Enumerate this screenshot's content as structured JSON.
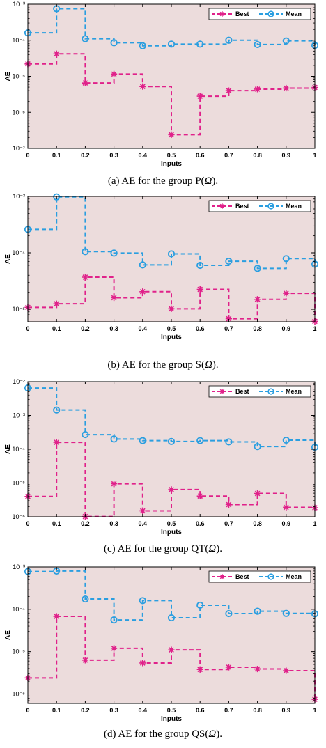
{
  "colors": {
    "background": "#ecdcdc",
    "best": "#e0218a",
    "mean": "#2a9ee0",
    "axis": "#000000"
  },
  "panels": [
    {
      "caption_prefix": "(a)  AE for the group P(",
      "caption_symbol": "Ω",
      "caption_suffix": ")."
    },
    {
      "caption_prefix": "(b) AE for the group S(",
      "caption_symbol": "Ω",
      "caption_suffix": ")."
    },
    {
      "caption_prefix": "(c) AE for the group QT(",
      "caption_symbol": "Ω",
      "caption_suffix": ")."
    },
    {
      "caption_prefix": "(d) AE for the group QS(",
      "caption_symbol": "Ω",
      "caption_suffix": ")."
    }
  ],
  "chart_data": [
    {
      "type": "line",
      "step": true,
      "yscale": "log",
      "xlabel": "Inputs",
      "ylabel": "AE",
      "xlim": [
        0,
        1
      ],
      "ylim": [
        1e-07,
        0.001
      ],
      "xticks": [
        "0",
        "0.1",
        "0.2",
        "0.3",
        "0.4",
        "0.5",
        "0.6",
        "0.7",
        "0.8",
        "0.9",
        "1"
      ],
      "yticks": [
        {
          "value": 1e-07,
          "label": "10⁻⁷"
        },
        {
          "value": 1e-06,
          "label": "10⁻⁶"
        },
        {
          "value": 1e-05,
          "label": "10⁻⁵"
        },
        {
          "value": 0.0001,
          "label": "10⁻⁴"
        },
        {
          "value": 0.001,
          "label": "10⁻³"
        }
      ],
      "legend": "top-right",
      "grid": false,
      "x": [
        0,
        0.1,
        0.2,
        0.3,
        0.4,
        0.5,
        0.6,
        0.7,
        0.8,
        0.9,
        1
      ],
      "series": [
        {
          "name": "Best",
          "marker": "asterisk",
          "values": [
            2.2e-05,
            4.2e-05,
            6.5e-06,
            1.15e-05,
            5.2e-06,
            2.4e-07,
            2.8e-06,
            4e-06,
            4.4e-06,
            4.7e-06,
            4.9e-06
          ]
        },
        {
          "name": "Mean",
          "marker": "circle",
          "values": [
            0.00016,
            0.00075,
            0.00011,
            8.5e-05,
            7e-05,
            7.8e-05,
            7.8e-05,
            0.0001,
            7.6e-05,
            9.6e-05,
            7.2e-05
          ]
        }
      ]
    },
    {
      "type": "line",
      "step": true,
      "yscale": "log",
      "xlabel": "Inputs",
      "ylabel": "AE",
      "xlim": [
        0,
        1
      ],
      "ylim": [
        6e-06,
        0.001
      ],
      "xticks": [
        "0",
        "0.1",
        "0.2",
        "0.3",
        "0.4",
        "0.5",
        "0.6",
        "0.7",
        "0.8",
        "0.9",
        "1"
      ],
      "yticks": [
        {
          "value": 1e-05,
          "label": "10⁻⁵"
        },
        {
          "value": 0.0001,
          "label": "10⁻⁴"
        },
        {
          "value": 0.001,
          "label": "10⁻³"
        }
      ],
      "legend": "top-right",
      "grid": false,
      "x": [
        0,
        0.1,
        0.2,
        0.3,
        0.4,
        0.5,
        0.6,
        0.7,
        0.8,
        0.9,
        1
      ],
      "series": [
        {
          "name": "Best",
          "marker": "asterisk",
          "values": [
            1.08e-05,
            1.25e-05,
            3.7e-05,
            1.6e-05,
            2.05e-05,
            1.02e-05,
            2.25e-05,
            6.8e-06,
            1.5e-05,
            1.92e-05,
            6.1e-06
          ]
        },
        {
          "name": "Mean",
          "marker": "circle",
          "values": [
            0.00026,
            0.00098,
            0.000105,
            9.9e-05,
            6.1e-05,
            9.6e-05,
            6e-05,
            7.1e-05,
            5.3e-05,
            7.9e-05,
            6.3e-05
          ]
        }
      ]
    },
    {
      "type": "line",
      "step": true,
      "yscale": "log",
      "xlabel": "Inputs",
      "ylabel": "AE",
      "xlim": [
        0,
        1
      ],
      "ylim": [
        1e-06,
        0.01
      ],
      "xticks": [
        "0",
        "0.1",
        "0.2",
        "0.3",
        "0.4",
        "0.5",
        "0.6",
        "0.7",
        "0.8",
        "0.9",
        "1"
      ],
      "yticks": [
        {
          "value": 1e-06,
          "label": "10⁻⁶"
        },
        {
          "value": 1e-05,
          "label": "10⁻⁵"
        },
        {
          "value": 0.0001,
          "label": "10⁻⁴"
        },
        {
          "value": 0.001,
          "label": "10⁻³"
        },
        {
          "value": 0.01,
          "label": "10⁻²"
        }
      ],
      "legend": "top-right",
      "grid": false,
      "x": [
        0,
        0.1,
        0.2,
        0.3,
        0.4,
        0.5,
        0.6,
        0.7,
        0.8,
        0.9,
        1
      ],
      "series": [
        {
          "name": "Best",
          "marker": "asterisk",
          "values": [
            4e-06,
            0.00016,
            1.02e-06,
            9.5e-06,
            1.5e-06,
            6.4e-06,
            4.1e-06,
            2.3e-06,
            4.9e-06,
            1.9e-06,
            1.85e-06
          ]
        },
        {
          "name": "Mean",
          "marker": "circle",
          "values": [
            0.0065,
            0.00145,
            0.00027,
            0.0002,
            0.00018,
            0.00017,
            0.00018,
            0.000165,
            0.00012,
            0.000185,
            0.000115
          ]
        }
      ]
    },
    {
      "type": "line",
      "step": true,
      "yscale": "log",
      "xlabel": "Inputs",
      "ylabel": "AE",
      "xlim": [
        0,
        1
      ],
      "ylim": [
        6e-07,
        0.001
      ],
      "xticks": [
        "0",
        "0.1",
        "0.2",
        "0.3",
        "0.4",
        "0.5",
        "0.6",
        "0.7",
        "0.8",
        "0.9",
        "1"
      ],
      "yticks": [
        {
          "value": 1e-06,
          "label": "10⁻⁶"
        },
        {
          "value": 1e-05,
          "label": "10⁻⁵"
        },
        {
          "value": 0.0001,
          "label": "10⁻⁴"
        },
        {
          "value": 0.001,
          "label": "10⁻³"
        }
      ],
      "legend": "top-right",
      "grid": false,
      "x": [
        0,
        0.1,
        0.2,
        0.3,
        0.4,
        0.5,
        0.6,
        0.7,
        0.8,
        0.9,
        1
      ],
      "series": [
        {
          "name": "Best",
          "marker": "asterisk",
          "values": [
            2.4e-06,
            6.8e-05,
            6.3e-06,
            1.2e-05,
            5.4e-06,
            1.1e-05,
            3.8e-06,
            4.3e-06,
            3.9e-06,
            3.55e-06,
            7.5e-07
          ]
        },
        {
          "name": "Mean",
          "marker": "circle",
          "values": [
            0.00078,
            0.0008,
            0.000175,
            5.6e-05,
            0.00016,
            6.3e-05,
            0.000125,
            7.9e-05,
            9e-05,
            8e-05,
            7.8e-05
          ]
        }
      ]
    }
  ]
}
